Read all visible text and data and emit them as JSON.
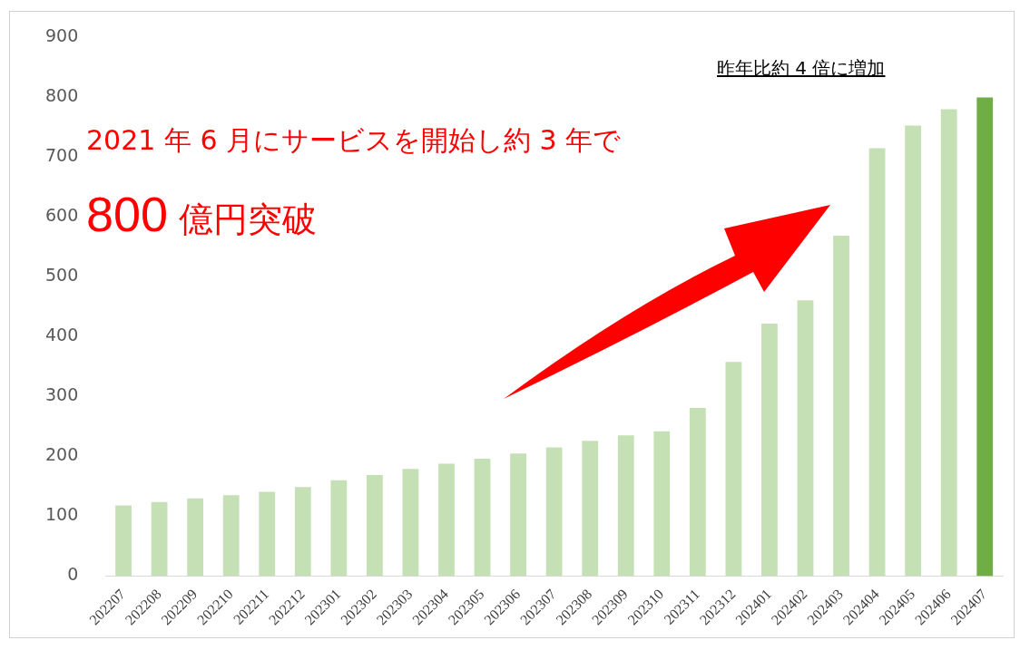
{
  "chart_data": {
    "type": "bar",
    "categories": [
      "202207",
      "202208",
      "202209",
      "202210",
      "202211",
      "202212",
      "202301",
      "202302",
      "202303",
      "202304",
      "202305",
      "202306",
      "202307",
      "202308",
      "202309",
      "202310",
      "202311",
      "202312",
      "202401",
      "202402",
      "202403",
      "202404",
      "202405",
      "202406",
      "202407"
    ],
    "values": [
      118,
      124,
      130,
      135,
      141,
      149,
      160,
      169,
      179,
      188,
      196,
      205,
      215,
      226,
      235,
      242,
      281,
      358,
      422,
      461,
      569,
      715,
      753,
      780,
      800
    ],
    "colors": [
      "#c5e0b4",
      "#c5e0b4",
      "#c5e0b4",
      "#c5e0b4",
      "#c5e0b4",
      "#c5e0b4",
      "#c5e0b4",
      "#c5e0b4",
      "#c5e0b4",
      "#c5e0b4",
      "#c5e0b4",
      "#c5e0b4",
      "#c5e0b4",
      "#c5e0b4",
      "#c5e0b4",
      "#c5e0b4",
      "#c5e0b4",
      "#c5e0b4",
      "#c5e0b4",
      "#c5e0b4",
      "#c5e0b4",
      "#c5e0b4",
      "#c5e0b4",
      "#c5e0b4",
      "#70ad47"
    ],
    "ylim": [
      0,
      900
    ],
    "yticks": [
      0,
      100,
      200,
      300,
      400,
      500,
      600,
      700,
      800,
      900
    ],
    "grid": false,
    "legend": false,
    "annotations": [
      "2021 年 6 月にサービスを開始し約 3 年で",
      "800 億円突破",
      "昨年比約 4 倍に増加"
    ]
  }
}
